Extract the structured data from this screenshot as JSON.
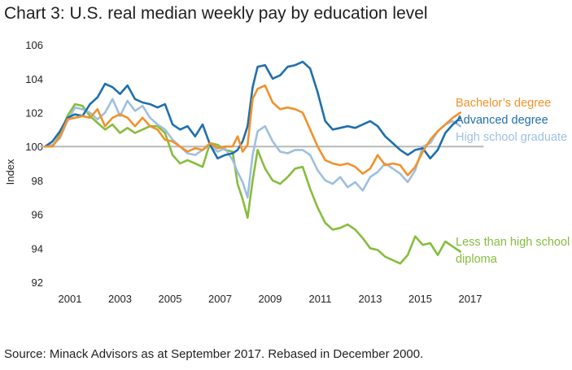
{
  "title": "Chart 3: U.S. real median weekly pay by education level",
  "source": "Source: Minack Advisors as at September 2017. Rebased in December 2000.",
  "colors": {
    "bachelors": "#f0922b",
    "advanced": "#1f6fad",
    "highschool": "#9ebfe0",
    "lessthan": "#86bd3e",
    "baseline": "#b8b8b8"
  },
  "chart_data": {
    "type": "line",
    "title": "Chart 3: U.S. real median weekly pay by education level",
    "xlabel": "",
    "ylabel": "Index",
    "xlim": [
      2000.3,
      2017.5
    ],
    "ylim": [
      92,
      106
    ],
    "x_ticks": [
      "2001",
      "2003",
      "2005",
      "2007",
      "2009",
      "2011",
      "2013",
      "2015",
      "2017"
    ],
    "y_ticks": [
      "92",
      "94",
      "96",
      "98",
      "100",
      "102",
      "104",
      "106"
    ],
    "reference_line": 100,
    "grid": false,
    "legend": "right, labels next to series",
    "series": [
      {
        "key": "lessthan",
        "name_lines": [
          "Less than high school",
          "diploma"
        ],
        "points": [
          [
            2000.0,
            100.0
          ],
          [
            2000.3,
            100.0
          ],
          [
            2000.6,
            100.7
          ],
          [
            2000.9,
            101.8
          ],
          [
            2001.2,
            102.5
          ],
          [
            2001.5,
            102.4
          ],
          [
            2001.8,
            101.8
          ],
          [
            2002.1,
            101.4
          ],
          [
            2002.4,
            101.0
          ],
          [
            2002.7,
            101.3
          ],
          [
            2003.0,
            100.8
          ],
          [
            2003.3,
            101.1
          ],
          [
            2003.6,
            100.8
          ],
          [
            2003.9,
            101.0
          ],
          [
            2004.2,
            101.2
          ],
          [
            2004.5,
            101.2
          ],
          [
            2004.8,
            100.8
          ],
          [
            2005.1,
            99.5
          ],
          [
            2005.4,
            99.0
          ],
          [
            2005.7,
            99.2
          ],
          [
            2006.0,
            99.0
          ],
          [
            2006.3,
            98.8
          ],
          [
            2006.6,
            100.2
          ],
          [
            2006.9,
            100.1
          ],
          [
            2007.2,
            99.8
          ],
          [
            2007.5,
            99.7
          ],
          [
            2007.7,
            97.8
          ],
          [
            2007.9,
            96.9
          ],
          [
            2008.1,
            95.8
          ],
          [
            2008.3,
            98.0
          ],
          [
            2008.5,
            99.8
          ],
          [
            2008.8,
            98.7
          ],
          [
            2009.1,
            98.0
          ],
          [
            2009.4,
            97.8
          ],
          [
            2009.7,
            98.2
          ],
          [
            2010.0,
            98.7
          ],
          [
            2010.3,
            98.8
          ],
          [
            2010.6,
            97.5
          ],
          [
            2010.9,
            96.4
          ],
          [
            2011.2,
            95.5
          ],
          [
            2011.5,
            95.1
          ],
          [
            2011.8,
            95.2
          ],
          [
            2012.1,
            95.4
          ],
          [
            2012.4,
            95.1
          ],
          [
            2012.7,
            94.6
          ],
          [
            2013.0,
            94.0
          ],
          [
            2013.3,
            93.9
          ],
          [
            2013.6,
            93.5
          ],
          [
            2013.9,
            93.3
          ],
          [
            2014.2,
            93.1
          ],
          [
            2014.5,
            93.6
          ],
          [
            2014.8,
            94.7
          ],
          [
            2015.1,
            94.2
          ],
          [
            2015.4,
            94.3
          ],
          [
            2015.7,
            93.6
          ],
          [
            2016.0,
            94.4
          ],
          [
            2016.3,
            94.1
          ],
          [
            2016.6,
            93.8
          ]
        ]
      },
      {
        "key": "highschool",
        "name_lines": [
          "High school graduate"
        ],
        "points": [
          [
            2000.0,
            100.0
          ],
          [
            2000.3,
            100.1
          ],
          [
            2000.6,
            100.5
          ],
          [
            2000.9,
            101.5
          ],
          [
            2001.2,
            102.3
          ],
          [
            2001.5,
            102.2
          ],
          [
            2001.8,
            102.0
          ],
          [
            2002.1,
            101.6
          ],
          [
            2002.4,
            102.0
          ],
          [
            2002.7,
            102.8
          ],
          [
            2003.0,
            101.8
          ],
          [
            2003.3,
            102.7
          ],
          [
            2003.6,
            102.1
          ],
          [
            2003.9,
            102.4
          ],
          [
            2004.2,
            101.7
          ],
          [
            2004.5,
            101.3
          ],
          [
            2004.8,
            101.0
          ],
          [
            2005.1,
            100.4
          ],
          [
            2005.4,
            100.0
          ],
          [
            2005.7,
            99.6
          ],
          [
            2006.0,
            99.5
          ],
          [
            2006.3,
            99.8
          ],
          [
            2006.6,
            100.1
          ],
          [
            2006.9,
            99.7
          ],
          [
            2007.2,
            99.9
          ],
          [
            2007.5,
            99.2
          ],
          [
            2007.7,
            98.5
          ],
          [
            2007.9,
            97.9
          ],
          [
            2008.1,
            97.0
          ],
          [
            2008.3,
            99.5
          ],
          [
            2008.5,
            100.9
          ],
          [
            2008.8,
            101.2
          ],
          [
            2009.1,
            100.3
          ],
          [
            2009.4,
            99.7
          ],
          [
            2009.7,
            99.6
          ],
          [
            2010.0,
            99.8
          ],
          [
            2010.3,
            99.8
          ],
          [
            2010.6,
            99.5
          ],
          [
            2010.9,
            98.6
          ],
          [
            2011.2,
            98.0
          ],
          [
            2011.5,
            97.8
          ],
          [
            2011.8,
            98.2
          ],
          [
            2012.1,
            97.6
          ],
          [
            2012.4,
            97.9
          ],
          [
            2012.7,
            97.4
          ],
          [
            2013.0,
            98.2
          ],
          [
            2013.3,
            98.5
          ],
          [
            2013.6,
            99.0
          ],
          [
            2013.9,
            98.7
          ],
          [
            2014.2,
            98.4
          ],
          [
            2014.5,
            97.9
          ],
          [
            2014.8,
            98.6
          ],
          [
            2015.1,
            100.0
          ],
          [
            2015.4,
            100.2
          ],
          [
            2015.7,
            100.9
          ],
          [
            2016.0,
            101.3
          ],
          [
            2016.3,
            101.5
          ],
          [
            2016.6,
            101.2
          ]
        ]
      },
      {
        "key": "advanced",
        "name_lines": [
          "Advanced degree"
        ],
        "points": [
          [
            2000.0,
            100.0
          ],
          [
            2000.3,
            100.3
          ],
          [
            2000.6,
            100.9
          ],
          [
            2000.9,
            101.7
          ],
          [
            2001.2,
            101.9
          ],
          [
            2001.5,
            101.8
          ],
          [
            2001.8,
            102.5
          ],
          [
            2002.1,
            102.9
          ],
          [
            2002.4,
            103.7
          ],
          [
            2002.7,
            103.5
          ],
          [
            2003.0,
            103.1
          ],
          [
            2003.3,
            103.6
          ],
          [
            2003.6,
            102.8
          ],
          [
            2003.9,
            102.6
          ],
          [
            2004.2,
            102.5
          ],
          [
            2004.5,
            102.3
          ],
          [
            2004.8,
            102.5
          ],
          [
            2005.1,
            101.3
          ],
          [
            2005.4,
            101.0
          ],
          [
            2005.7,
            101.2
          ],
          [
            2006.0,
            100.6
          ],
          [
            2006.3,
            101.3
          ],
          [
            2006.6,
            100.1
          ],
          [
            2006.9,
            99.3
          ],
          [
            2007.2,
            99.5
          ],
          [
            2007.5,
            99.6
          ],
          [
            2007.7,
            99.8
          ],
          [
            2007.9,
            100.3
          ],
          [
            2008.1,
            101.2
          ],
          [
            2008.3,
            103.5
          ],
          [
            2008.5,
            104.7
          ],
          [
            2008.8,
            104.8
          ],
          [
            2009.1,
            104.0
          ],
          [
            2009.4,
            104.2
          ],
          [
            2009.7,
            104.7
          ],
          [
            2010.0,
            104.8
          ],
          [
            2010.3,
            105.0
          ],
          [
            2010.6,
            104.6
          ],
          [
            2010.9,
            103.2
          ],
          [
            2011.2,
            101.5
          ],
          [
            2011.5,
            101.0
          ],
          [
            2011.8,
            101.1
          ],
          [
            2012.1,
            101.2
          ],
          [
            2012.4,
            101.1
          ],
          [
            2012.7,
            101.3
          ],
          [
            2013.0,
            101.5
          ],
          [
            2013.3,
            101.2
          ],
          [
            2013.6,
            100.6
          ],
          [
            2013.9,
            100.2
          ],
          [
            2014.2,
            99.8
          ],
          [
            2014.5,
            99.5
          ],
          [
            2014.8,
            99.8
          ],
          [
            2015.1,
            99.9
          ],
          [
            2015.4,
            99.3
          ],
          [
            2015.7,
            99.8
          ],
          [
            2016.0,
            100.8
          ],
          [
            2016.3,
            101.3
          ],
          [
            2016.6,
            101.7
          ]
        ]
      },
      {
        "key": "bachelors",
        "name_lines": [
          "Bachelor’s degree"
        ],
        "points": [
          [
            2000.0,
            100.0
          ],
          [
            2000.3,
            100.0
          ],
          [
            2000.6,
            100.6
          ],
          [
            2000.9,
            101.6
          ],
          [
            2001.2,
            101.7
          ],
          [
            2001.5,
            101.8
          ],
          [
            2001.8,
            101.7
          ],
          [
            2002.1,
            102.2
          ],
          [
            2002.4,
            101.2
          ],
          [
            2002.7,
            101.7
          ],
          [
            2003.0,
            101.9
          ],
          [
            2003.3,
            101.7
          ],
          [
            2003.6,
            101.2
          ],
          [
            2003.9,
            101.7
          ],
          [
            2004.2,
            101.2
          ],
          [
            2004.5,
            101.0
          ],
          [
            2004.8,
            100.4
          ],
          [
            2005.1,
            100.3
          ],
          [
            2005.4,
            100.0
          ],
          [
            2005.7,
            99.7
          ],
          [
            2006.0,
            99.9
          ],
          [
            2006.3,
            99.8
          ],
          [
            2006.6,
            100.2
          ],
          [
            2006.9,
            99.9
          ],
          [
            2007.2,
            100.0
          ],
          [
            2007.5,
            100.0
          ],
          [
            2007.7,
            100.6
          ],
          [
            2007.9,
            99.7
          ],
          [
            2008.1,
            100.1
          ],
          [
            2008.3,
            102.8
          ],
          [
            2008.5,
            103.4
          ],
          [
            2008.8,
            103.6
          ],
          [
            2009.1,
            102.6
          ],
          [
            2009.4,
            102.2
          ],
          [
            2009.7,
            102.3
          ],
          [
            2010.0,
            102.2
          ],
          [
            2010.3,
            102.0
          ],
          [
            2010.6,
            101.0
          ],
          [
            2010.9,
            100.0
          ],
          [
            2011.2,
            99.2
          ],
          [
            2011.5,
            99.0
          ],
          [
            2011.8,
            98.9
          ],
          [
            2012.1,
            99.0
          ],
          [
            2012.4,
            98.8
          ],
          [
            2012.7,
            98.4
          ],
          [
            2013.0,
            98.7
          ],
          [
            2013.3,
            99.5
          ],
          [
            2013.6,
            98.9
          ],
          [
            2013.9,
            99.0
          ],
          [
            2014.2,
            98.9
          ],
          [
            2014.5,
            98.3
          ],
          [
            2014.8,
            98.8
          ],
          [
            2015.1,
            99.7
          ],
          [
            2015.4,
            100.4
          ],
          [
            2015.7,
            100.9
          ],
          [
            2016.0,
            101.3
          ],
          [
            2016.3,
            101.7
          ],
          [
            2016.6,
            102.0
          ]
        ]
      }
    ]
  }
}
